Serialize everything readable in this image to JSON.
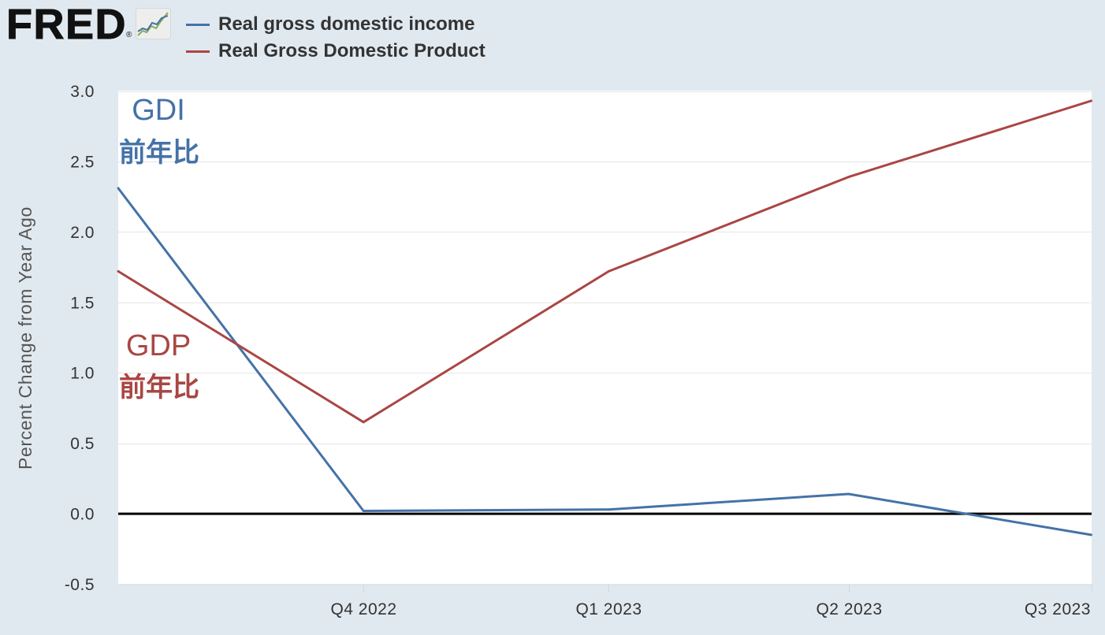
{
  "logo": {
    "text": "FRED",
    "mark": "®",
    "icon": "fred-chart-icon"
  },
  "chart_data": {
    "type": "line",
    "ylabel": "Percent Change from Year Ago",
    "x": [
      "2022-07-01",
      "2022-10-01",
      "2023-01-01",
      "2023-04-01",
      "2023-07-01"
    ],
    "xlim": [
      "2022-07-01",
      "2023-07-01"
    ],
    "x_ticks": [
      {
        "x": "2022-10-01",
        "label": "Q4 2022"
      },
      {
        "x": "2023-01-01",
        "label": "Q1 2023"
      },
      {
        "x": "2023-04-01",
        "label": "Q2 2023"
      },
      {
        "x": "2023-07-01",
        "label": "Q3 2023"
      }
    ],
    "ylim": [
      -0.5,
      3.0
    ],
    "y_ticks": [
      {
        "value": 3.0,
        "label": "3.0"
      },
      {
        "value": 2.5,
        "label": "2.5"
      },
      {
        "value": 2.0,
        "label": "2.0"
      },
      {
        "value": 1.5,
        "label": "1.5"
      },
      {
        "value": 1.0,
        "label": "1.0"
      },
      {
        "value": 0.5,
        "label": "0.5"
      },
      {
        "value": 0.0,
        "label": "0.0"
      },
      {
        "value": -0.5,
        "label": "-0.5"
      }
    ],
    "series": [
      {
        "name": "Real gross domestic income",
        "color": "#4572a7",
        "values": [
          2.31,
          0.02,
          0.03,
          0.14,
          -0.15
        ]
      },
      {
        "name": "Real Gross Domestic Product",
        "color": "#aa4643",
        "values": [
          1.72,
          0.65,
          1.72,
          2.39,
          2.93
        ]
      }
    ],
    "annotations": [
      {
        "text": "GDI",
        "color": "#4572a7"
      },
      {
        "text": "前年比",
        "color": "#4572a7"
      },
      {
        "text": "GDP",
        "color": "#aa4643"
      },
      {
        "text": "前年比",
        "color": "#aa4643"
      }
    ],
    "zero_line": {
      "value": 0,
      "color": "#000000"
    },
    "grid": true,
    "legend_position": "top-left",
    "colors": {
      "page_background": "#e1e9f0",
      "plot_background": "#ffffff",
      "gridline": "#e6e6e6",
      "axis_line": "#ccd6eb",
      "tick_label": "#333333",
      "axis_label": "#555555"
    }
  }
}
